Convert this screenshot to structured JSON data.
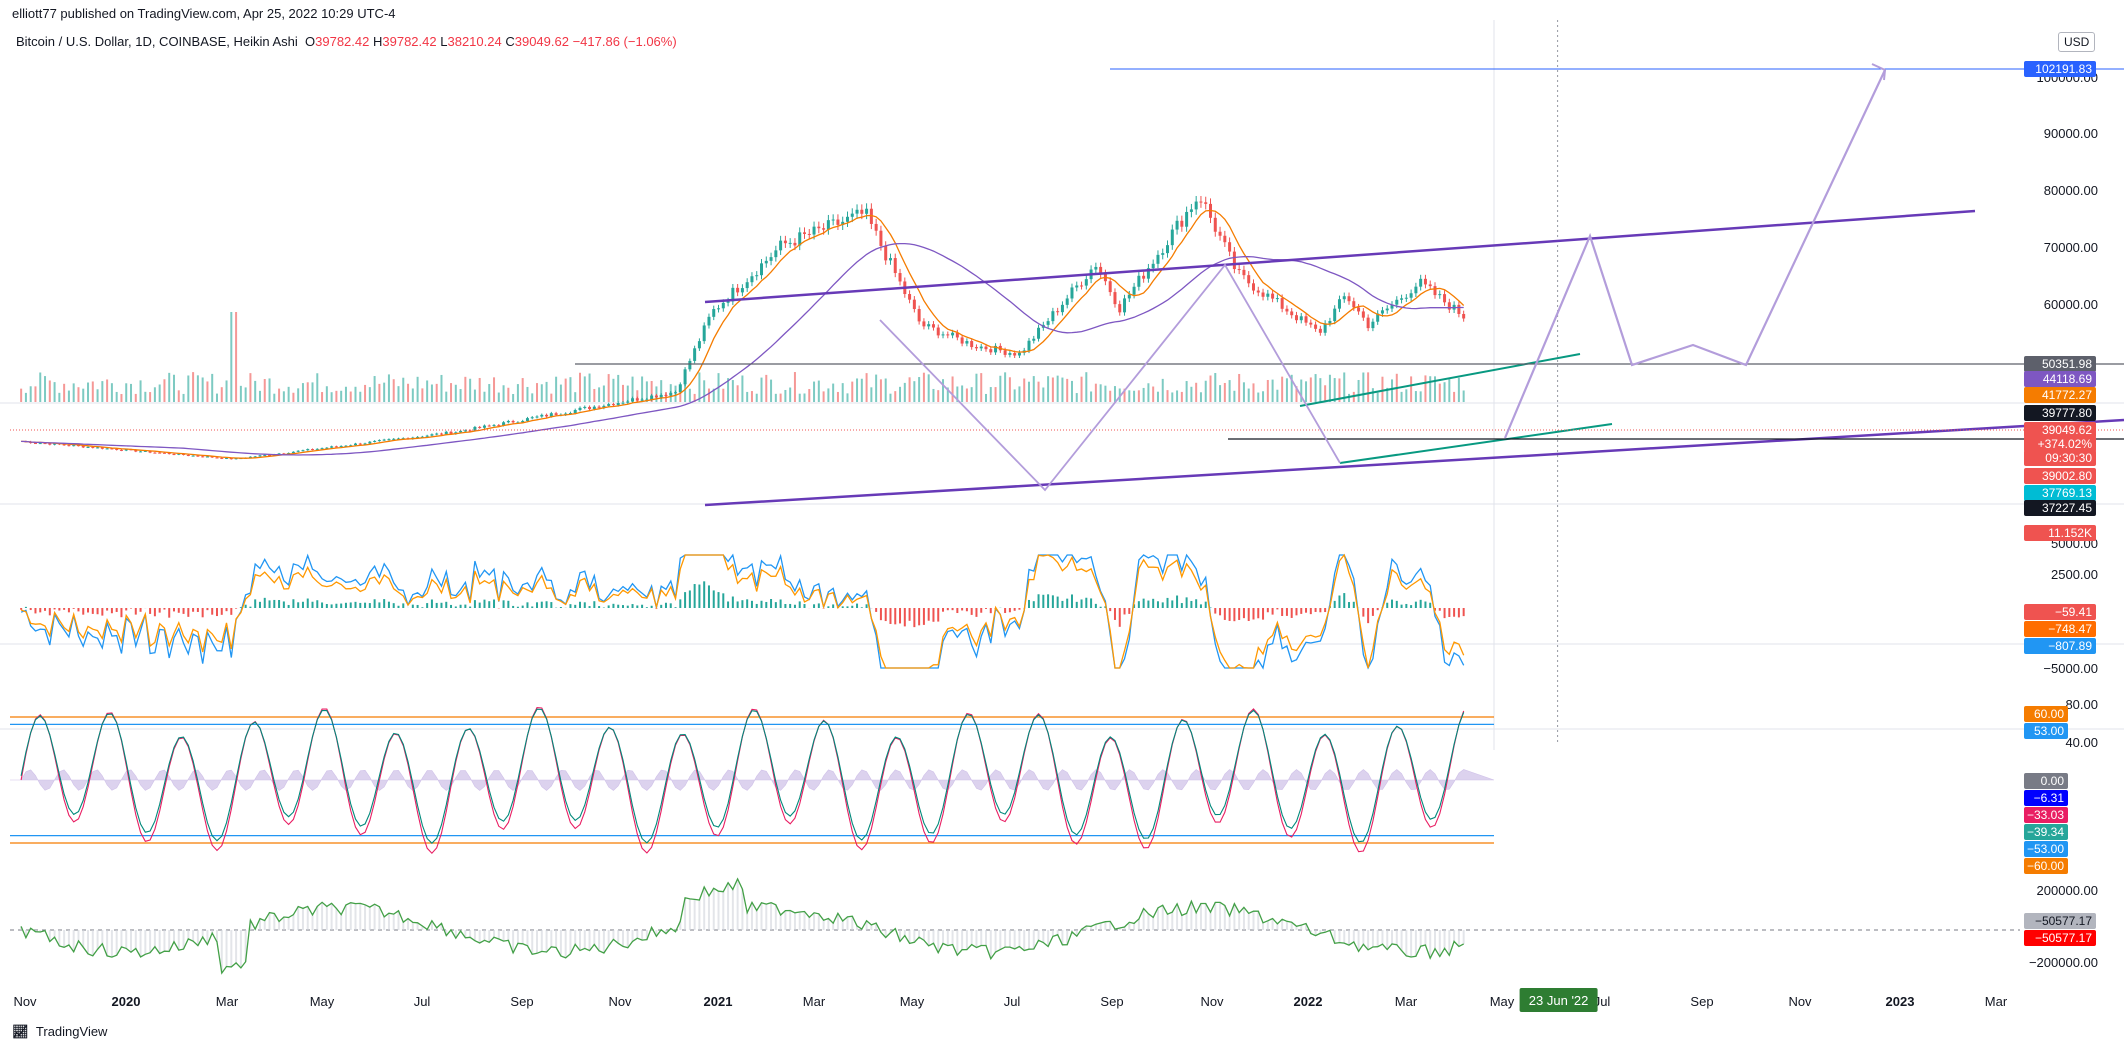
{
  "header": {
    "published": "elliott77 published on TradingView.com, Apr 25, 2022 10:29 UTC-4"
  },
  "symbol_line": {
    "name": "Bitcoin / U.S. Dollar, 1D, COINBASE, Heikin Ashi",
    "open_label": "O",
    "open": "39782.42",
    "high_label": "H",
    "high": "39782.42",
    "low_label": "L",
    "low": "38210.24",
    "close_label": "C",
    "close": "39049.62",
    "change": "−417.86 (−1.06%)"
  },
  "currency": "USD",
  "footer": {
    "brand": "TradingView"
  },
  "colors": {
    "up": "#26a69a",
    "down": "#ef5350",
    "channel": "#673ab7",
    "projection": "#b39ddb",
    "teal_trend": "#089981",
    "ma_orange": "#f57c00",
    "ma_purple": "#7e57c2",
    "macd": "#2196f3",
    "signal": "#ff9800",
    "cvd_up": "#43a047",
    "cvd_down": "#e53935"
  },
  "time_axis": {
    "labels": [
      "Nov",
      "2020",
      "Mar",
      "May",
      "Jul",
      "Sep",
      "Nov",
      "2021",
      "Mar",
      "May",
      "Jul",
      "Sep",
      "Nov",
      "2022",
      "Mar",
      "May",
      "Jul",
      "Sep",
      "Nov",
      "2023",
      "Mar"
    ],
    "crosshair_label": "23 Jun '22"
  },
  "chart_data": [
    {
      "type": "candlestick",
      "title": "Bitcoin / U.S. Dollar, 1D, COINBASE, Heikin Ashi",
      "x_range": [
        "2019-10-25",
        "2023-03-31"
      ],
      "ylim": [
        20000,
        105000
      ],
      "y_ticks": [
        "100000.00",
        "90000.00",
        "80000.00",
        "70000.00",
        "60000.00"
      ],
      "key_points": [
        {
          "date": "2019-11-01",
          "close": 9200
        },
        {
          "date": "2020-03-13",
          "close": 5000
        },
        {
          "date": "2020-08-01",
          "close": 11500
        },
        {
          "date": "2020-12-16",
          "close": 21000
        },
        {
          "date": "2021-01-08",
          "close": 40000
        },
        {
          "date": "2021-02-21",
          "close": 56000
        },
        {
          "date": "2021-04-14",
          "close": 63500
        },
        {
          "date": "2021-05-19",
          "close": 37000
        },
        {
          "date": "2021-06-22",
          "close": 32000
        },
        {
          "date": "2021-07-20",
          "close": 30000
        },
        {
          "date": "2021-09-06",
          "close": 51500
        },
        {
          "date": "2021-09-21",
          "close": 41000
        },
        {
          "date": "2021-11-10",
          "close": 68000
        },
        {
          "date": "2021-12-04",
          "close": 49000
        },
        {
          "date": "2022-01-24",
          "close": 35000
        },
        {
          "date": "2022-02-10",
          "close": 44000
        },
        {
          "date": "2022-02-24",
          "close": 37000
        },
        {
          "date": "2022-03-28",
          "close": 47000
        },
        {
          "date": "2022-04-25",
          "close": 39049.62
        }
      ],
      "projection_path": [
        {
          "date": "2022-04-25",
          "price": 39000
        },
        {
          "date": "2022-06-23",
          "price": 72000
        },
        {
          "date": "2022-07-15",
          "price": 50500
        },
        {
          "date": "2022-08-26",
          "price": 53500
        },
        {
          "date": "2022-09-25",
          "price": 50500
        },
        {
          "date": "2022-12-25",
          "price": 102200
        }
      ],
      "horizontal_levels": [
        50351.98,
        37227.45,
        102191.83
      ],
      "price_labels": [
        {
          "value": "102191.83",
          "color": "#2962ff"
        },
        {
          "value": "50351.98",
          "color": "#5d606b"
        },
        {
          "value": "44118.69",
          "color": "#7e57c2"
        },
        {
          "value": "41772.27",
          "color": "#f57c00"
        },
        {
          "value": "39777.80",
          "color": "#131722"
        },
        {
          "value": "39049.62",
          "color": "#ef5350"
        },
        {
          "value": "+374.02%",
          "color": "#ef5350"
        },
        {
          "value": "09:30:30",
          "color": "#ef5350"
        },
        {
          "value": "39002.80",
          "color": "#ef5350"
        },
        {
          "value": "37769.13",
          "color": "#00bcd4"
        },
        {
          "value": "37227.45",
          "color": "#131722"
        },
        {
          "value": "11.152K",
          "color": "#ef5350"
        }
      ]
    },
    {
      "type": "line",
      "name": "MACD",
      "ylim": [
        -7000,
        6000
      ],
      "y_ticks": [
        "5000.00",
        "2500.00",
        "−5000.00"
      ],
      "labels": [
        {
          "value": "−59.41",
          "color": "#ef5350"
        },
        {
          "value": "−748.47",
          "color": "#ff6d00"
        },
        {
          "value": "−807.89",
          "color": "#2196f3"
        }
      ]
    },
    {
      "type": "line",
      "name": "Oscillator",
      "ylim": [
        -80,
        80
      ],
      "y_ticks": [
        "80.00",
        "40.00"
      ],
      "levels": [
        60,
        53,
        -53,
        -60
      ],
      "labels": [
        {
          "value": "60.00",
          "color": "#f57c00"
        },
        {
          "value": "53.00",
          "color": "#2196f3"
        },
        {
          "value": "0.00",
          "color": "#787b86"
        },
        {
          "value": "−6.31",
          "color": "#0000ff"
        },
        {
          "value": "−33.03",
          "color": "#e91e63"
        },
        {
          "value": "−39.34",
          "color": "#26a69a"
        },
        {
          "value": "−53.00",
          "color": "#2196f3"
        },
        {
          "value": "−60.00",
          "color": "#f57c00"
        }
      ]
    },
    {
      "type": "area",
      "name": "Cumulative",
      "ylim": [
        -300000,
        300000
      ],
      "y_ticks": [
        "200000.00",
        "−200000.00"
      ],
      "labels": [
        {
          "value": "−50577.17",
          "color": "#b2b5be"
        },
        {
          "value": "−50577.17",
          "color": "#ff0000"
        }
      ]
    }
  ]
}
